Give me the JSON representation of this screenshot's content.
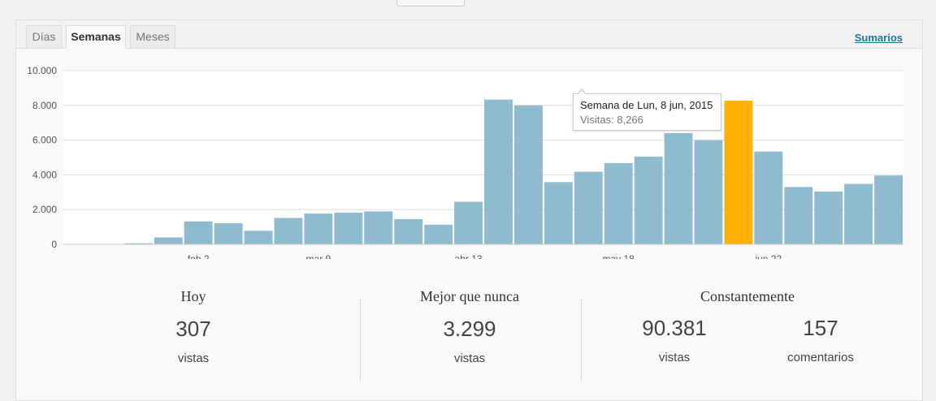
{
  "tabs": [
    {
      "label": "Días"
    },
    {
      "label": "Semanas"
    },
    {
      "label": "Meses"
    }
  ],
  "summary_link": "Sumarios",
  "chart_data": {
    "type": "bar",
    "categories": [
      "",
      "",
      "",
      "",
      "feb 2",
      "",
      "",
      "",
      "mar 9",
      "",
      "",
      "",
      "",
      "abr 13",
      "",
      "",
      "",
      "",
      "may 18",
      "",
      "",
      "",
      "",
      "jun 22",
      "",
      "",
      "",
      ""
    ],
    "x_tick_labels": [
      "feb 2",
      "mar 9",
      "abr 13",
      "may 18",
      "jun 22"
    ],
    "values": [
      10,
      20,
      60,
      400,
      1320,
      1220,
      780,
      1520,
      1770,
      1820,
      1900,
      1450,
      1130,
      2450,
      8330,
      8000,
      3580,
      4180,
      4680,
      5050,
      6400,
      6000,
      8266,
      5340,
      3300,
      3040,
      3480,
      3960
    ],
    "highlight_index": 22,
    "ylim": [
      0,
      10000
    ],
    "y_ticks": [
      "0",
      "2.000",
      "4.000",
      "6.000",
      "8.000",
      "10.000"
    ],
    "colors": {
      "bar": "#8fbbce",
      "highlight": "#ffb001",
      "grid": "#dddddd"
    },
    "grid": true
  },
  "tooltip": {
    "title": "Semana de Lun, 8 jun, 2015",
    "value_text": "Visitas: 8,266"
  },
  "stats": {
    "today": {
      "title": "Hoy",
      "value": "307",
      "label": "vistas"
    },
    "best": {
      "title": "Mejor que nunca",
      "value": "3.299",
      "label": "vistas"
    },
    "alltime": {
      "title": "Constantemente",
      "views_value": "90.381",
      "views_label": "vistas",
      "comments_value": "157",
      "comments_label": "comentarios"
    }
  }
}
